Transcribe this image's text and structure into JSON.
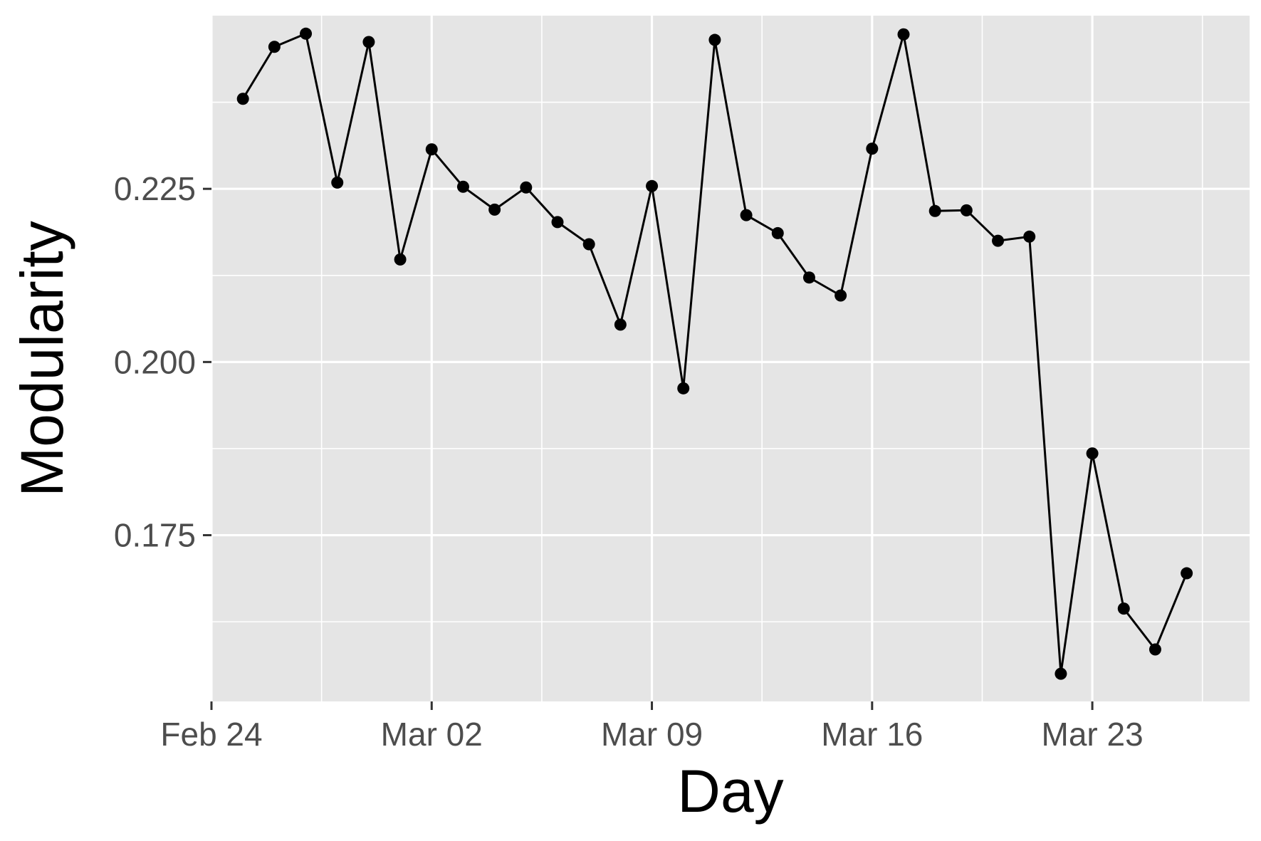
{
  "chart_data": {
    "type": "line",
    "xlabel": "Day",
    "ylabel": "Modularity",
    "x_tick_labels": [
      "Feb 24",
      "Mar 02",
      "Mar 09",
      "Mar 16",
      "Mar 23"
    ],
    "x_tick_dates": [
      "2020-02-24",
      "2020-03-02",
      "2020-03-09",
      "2020-03-16",
      "2020-03-23"
    ],
    "y_tick_labels": [
      "0.175",
      "0.200",
      "0.225"
    ],
    "y_ticks": [
      0.175,
      0.2,
      0.225
    ],
    "xlim": [
      "2020-02-24",
      "2020-03-28"
    ],
    "ylim": [
      0.151,
      0.25
    ],
    "grid": true,
    "colors": {
      "panel": "#e5e5e5",
      "grid": "#ffffff",
      "line": "#000000",
      "tick_text": "#4d4d4d"
    },
    "points": [
      {
        "x": "2020-02-25",
        "y": 0.238
      },
      {
        "x": "2020-02-26",
        "y": 0.2455
      },
      {
        "x": "2020-02-27",
        "y": 0.2474
      },
      {
        "x": "2020-02-28",
        "y": 0.2259
      },
      {
        "x": "2020-02-29",
        "y": 0.2462
      },
      {
        "x": "2020-03-01",
        "y": 0.2148
      },
      {
        "x": "2020-03-02",
        "y": 0.2307
      },
      {
        "x": "2020-03-03",
        "y": 0.2253
      },
      {
        "x": "2020-03-04",
        "y": 0.222
      },
      {
        "x": "2020-03-05",
        "y": 0.2252
      },
      {
        "x": "2020-03-06",
        "y": 0.2202
      },
      {
        "x": "2020-03-07",
        "y": 0.217
      },
      {
        "x": "2020-03-08",
        "y": 0.2054
      },
      {
        "x": "2020-03-09",
        "y": 0.2254
      },
      {
        "x": "2020-03-10",
        "y": 0.1962
      },
      {
        "x": "2020-03-11",
        "y": 0.2465
      },
      {
        "x": "2020-03-12",
        "y": 0.2212
      },
      {
        "x": "2020-03-13",
        "y": 0.2186
      },
      {
        "x": "2020-03-14",
        "y": 0.2122
      },
      {
        "x": "2020-03-15",
        "y": 0.2096
      },
      {
        "x": "2020-03-16",
        "y": 0.2308
      },
      {
        "x": "2020-03-17",
        "y": 0.2473
      },
      {
        "x": "2020-03-18",
        "y": 0.2218
      },
      {
        "x": "2020-03-19",
        "y": 0.2219
      },
      {
        "x": "2020-03-20",
        "y": 0.2175
      },
      {
        "x": "2020-03-21",
        "y": 0.2181
      },
      {
        "x": "2020-03-22",
        "y": 0.155
      },
      {
        "x": "2020-03-23",
        "y": 0.1868
      },
      {
        "x": "2020-03-24",
        "y": 0.1644
      },
      {
        "x": "2020-03-25",
        "y": 0.1585
      },
      {
        "x": "2020-03-26",
        "y": 0.1695
      }
    ]
  }
}
